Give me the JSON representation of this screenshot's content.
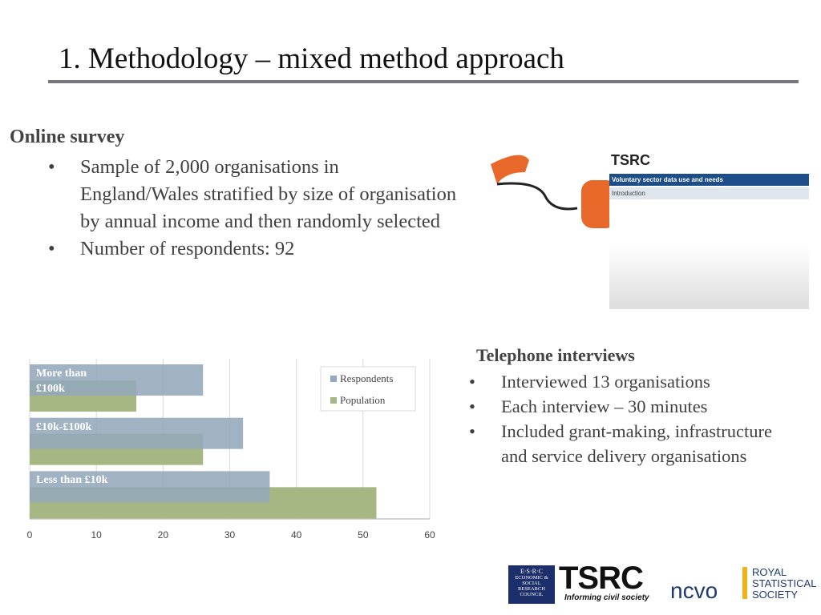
{
  "title": "1. Methodology – mixed method approach",
  "online_survey": {
    "heading": "Online survey",
    "bullets": [
      "Sample of 2,000 organisations in England/Wales stratified by size of organisation by annual income and then randomly selected",
      "Number of respondents: 92"
    ]
  },
  "telephone": {
    "heading": "Telephone interviews",
    "bullets": [
      "Interviewed 13 organisations",
      "Each interview – 30 minutes",
      "Included grant-making, infrastructure and service delivery organisations"
    ]
  },
  "survey_screenshot": {
    "logo": "TSRC",
    "title": "Voluntary sector data use and needs",
    "section": "Introduction"
  },
  "logos": {
    "esrc": "E·S·R·C",
    "esrc_name": "ECONOMIC & SOCIAL RESEARCH COUNCIL",
    "tsrc": "TSRC",
    "tsrc_tagline": "Informing civil society",
    "ncvo": "ncvo",
    "rss": "ROYAL STATISTICAL SOCIETY"
  },
  "chart_data": {
    "type": "hbar",
    "categories": [
      "More than £100k",
      "£10k-£100k",
      "Less than £10k"
    ],
    "series": [
      {
        "name": "Respondents",
        "color": "#94a9bb",
        "values": [
          26,
          32,
          36
        ]
      },
      {
        "name": "Population",
        "color": "#a6b784",
        "values": [
          16,
          26,
          52
        ]
      }
    ],
    "xlim": [
      0,
      60
    ],
    "xticks": [
      0,
      10,
      20,
      30,
      40,
      50,
      60
    ],
    "grid": true,
    "legend": "upper right"
  }
}
